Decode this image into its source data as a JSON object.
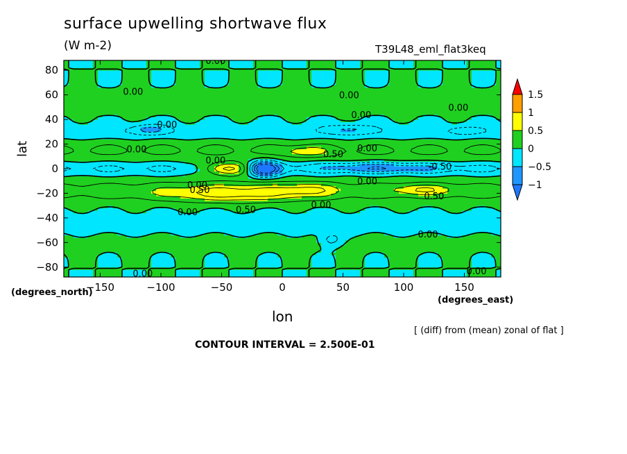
{
  "chart_data": {
    "type": "heatmap",
    "title": "surface upwelling shortwave flux",
    "units": "(W m-2)",
    "run_label": "T39L48_eml_flat3keq",
    "xlabel": "lon",
    "ylabel": "lat",
    "x_unit_label": "(degrees_east)",
    "y_unit_label": "(degrees_north)",
    "xlim": [
      -180,
      180
    ],
    "ylim": [
      -88,
      88
    ],
    "xticks": [
      -150,
      -100,
      -50,
      0,
      50,
      100,
      150
    ],
    "yticks": [
      -80,
      -60,
      -40,
      -20,
      0,
      20,
      40,
      60,
      80
    ],
    "colorbar": {
      "levels": [
        -1,
        -0.5,
        0,
        0.5,
        1,
        1.5
      ],
      "level_labels": [
        "-1",
        "-0.5",
        "0",
        "0.5",
        "1",
        "1.5"
      ],
      "colors": [
        "#1e78ff",
        "#00e6ff",
        "#20d020",
        "#ffff00",
        "#ff9f00",
        "#ff0000"
      ]
    },
    "contour_interval": 0.25,
    "contour_labels": [
      {
        "text": "0.00",
        "x": -55,
        "y": 88
      },
      {
        "text": "0.00",
        "x": -123,
        "y": 63
      },
      {
        "text": "0.00",
        "x": 55,
        "y": 60
      },
      {
        "text": "0.00",
        "x": 65,
        "y": 44
      },
      {
        "text": "0.00",
        "x": 145,
        "y": 50
      },
      {
        "text": "0.00",
        "x": -95,
        "y": 36
      },
      {
        "text": "0.00",
        "x": -120,
        "y": 16
      },
      {
        "text": "0.00",
        "x": 70,
        "y": 17
      },
      {
        "text": "0.50",
        "x": 42,
        "y": 12
      },
      {
        "text": "0.00",
        "x": -55,
        "y": 7
      },
      {
        "text": "-0.50",
        "x": 130,
        "y": 2
      },
      {
        "text": "0.00",
        "x": 70,
        "y": -10
      },
      {
        "text": "0.00",
        "x": -70,
        "y": -13
      },
      {
        "text": "0.50",
        "x": -68,
        "y": -17
      },
      {
        "text": "0.50",
        "x": 125,
        "y": -22
      },
      {
        "text": "0.00",
        "x": 32,
        "y": -29
      },
      {
        "text": "0.00",
        "x": -78,
        "y": -35
      },
      {
        "text": "0.50",
        "x": -30,
        "y": -33
      },
      {
        "text": "0.00",
        "x": 120,
        "y": -53
      },
      {
        "text": "0.00",
        "x": -115,
        "y": -85
      },
      {
        "text": "0.00",
        "x": 160,
        "y": -83
      }
    ],
    "features": [
      {
        "region": "equatorial east Pacific (-60 to -20 lon, -5 to 5 lat)",
        "sign": "positive",
        "max": 1.2
      },
      {
        "region": "equatorial Atlantic (-30 to -5 lon, -10 to 5 lat)",
        "sign": "negative",
        "min": -1.0
      },
      {
        "region": "equatorial Indian Ocean (40 to 130 lon, -5 to 5 lat)",
        "sign": "negative",
        "min": -0.6
      },
      {
        "region": "southern subtropics (-120 to 50 lon, -30 to -15 lat)",
        "sign": "positive",
        "max": 1.0
      },
      {
        "region": "Arabian Sea band (0 to 40 lon, 10 to 20 lat)",
        "sign": "positive",
        "max": 0.7
      }
    ]
  },
  "texts": {
    "title": "surface upwelling shortwave flux",
    "units": "(W m-2)",
    "run_label": "T39L48_eml_flat3keq",
    "xlabel": "lon",
    "ylabel": "lat",
    "y_unit_label": "(degrees_north)",
    "x_unit_label": "(degrees_east)",
    "footnote": "[ (diff) from (mean) zonal of flat ]",
    "contour_interval": "CONTOUR INTERVAL = 2.500E-01"
  }
}
